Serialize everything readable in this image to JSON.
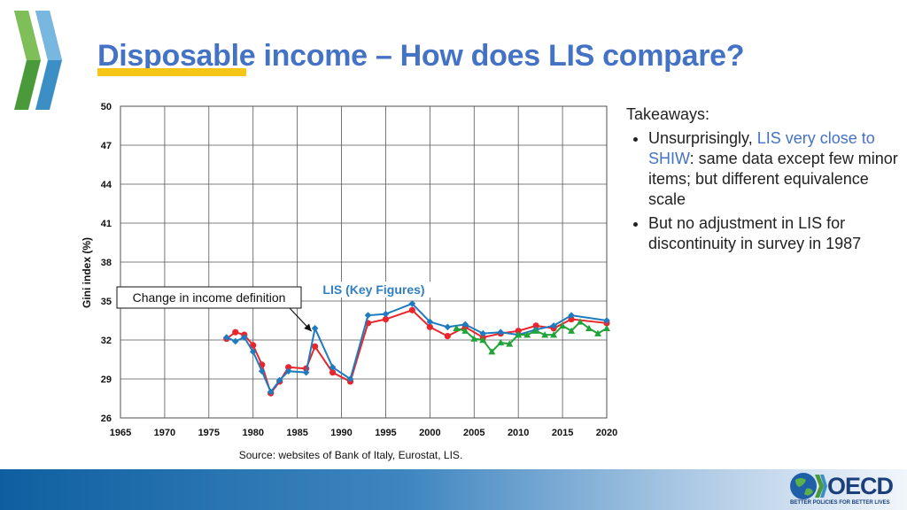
{
  "slide": {
    "title": "Disposable income – How does LIS compare?",
    "colors": {
      "title": "#4472c4",
      "underline": "#f5c518",
      "highlight": "#4472c4"
    }
  },
  "takeaways": {
    "heading": "Takeaways:",
    "bullet1_pre": "Unsurprisingly, ",
    "bullet1_highlight": "LIS very close to SHIW",
    "bullet1_post": ": same data except few minor items; but different equivalence scale",
    "bullet2": "But no adjustment in LIS for discontinuity in survey in 1987"
  },
  "logo": {
    "name": "OECD",
    "tagline": "BETTER POLICIES FOR BETTER LIVES"
  },
  "chart_data": {
    "type": "line",
    "ylabel": "Gini index (%)",
    "xlabel": "",
    "xlim": [
      1965,
      2020
    ],
    "ylim": [
      26,
      50
    ],
    "xticks": [
      1965,
      1970,
      1975,
      1980,
      1985,
      1990,
      1995,
      2000,
      2005,
      2010,
      2015,
      2020
    ],
    "yticks": [
      26,
      29,
      32,
      35,
      38,
      41,
      44,
      47,
      50
    ],
    "grid": true,
    "source": "Source: websites of Bank of Italy, Eurostat, LIS.",
    "annotations": [
      {
        "text": "Change in income definition",
        "target": {
          "x": 1987,
          "y": 32.2
        }
      },
      {
        "text": "LIS (Key Figures)"
      }
    ],
    "series": [
      {
        "color": "#e8262b",
        "marker": "circle",
        "x": [
          1977,
          1978,
          1979,
          1980,
          1981,
          1982,
          1983,
          1984,
          1986,
          1987,
          1989,
          1991,
          1993,
          1995,
          1998,
          2000,
          2002,
          2004,
          2006,
          2008,
          2010,
          2012,
          2014,
          2016,
          2020
        ],
        "y": [
          32.1,
          32.6,
          32.4,
          31.6,
          30.1,
          27.9,
          28.8,
          29.9,
          29.8,
          31.5,
          29.5,
          28.8,
          33.3,
          33.6,
          34.3,
          33.0,
          32.3,
          33.0,
          32.2,
          32.5,
          32.7,
          33.1,
          32.9,
          33.6,
          33.3
        ]
      },
      {
        "color": "#1f7bc0",
        "marker": "diamond",
        "x": [
          1977,
          1978,
          1979,
          1980,
          1981,
          1982,
          1983,
          1984,
          1986,
          1987,
          1989,
          1991,
          1993,
          1995,
          1998,
          2000,
          2002,
          2004,
          2006,
          2008,
          2010,
          2012,
          2014,
          2016,
          2020
        ],
        "y": [
          32.2,
          31.9,
          32.2,
          31.1,
          29.6,
          28.0,
          28.9,
          29.6,
          29.5,
          32.9,
          29.9,
          29.0,
          33.9,
          34.0,
          34.8,
          33.4,
          33.0,
          33.2,
          32.5,
          32.6,
          32.4,
          32.8,
          33.1,
          33.9,
          33.5
        ]
      },
      {
        "color": "#22a33a",
        "marker": "triangle",
        "x": [
          2003,
          2004,
          2005,
          2006,
          2007,
          2008,
          2009,
          2010,
          2011,
          2012,
          2013,
          2014,
          2015,
          2016,
          2017,
          2018,
          2019,
          2020
        ],
        "y": [
          32.9,
          32.7,
          32.1,
          32.0,
          31.1,
          31.8,
          31.7,
          32.4,
          32.4,
          32.7,
          32.4,
          32.4,
          33.1,
          32.7,
          33.4,
          32.9,
          32.5,
          32.9
        ]
      }
    ]
  }
}
